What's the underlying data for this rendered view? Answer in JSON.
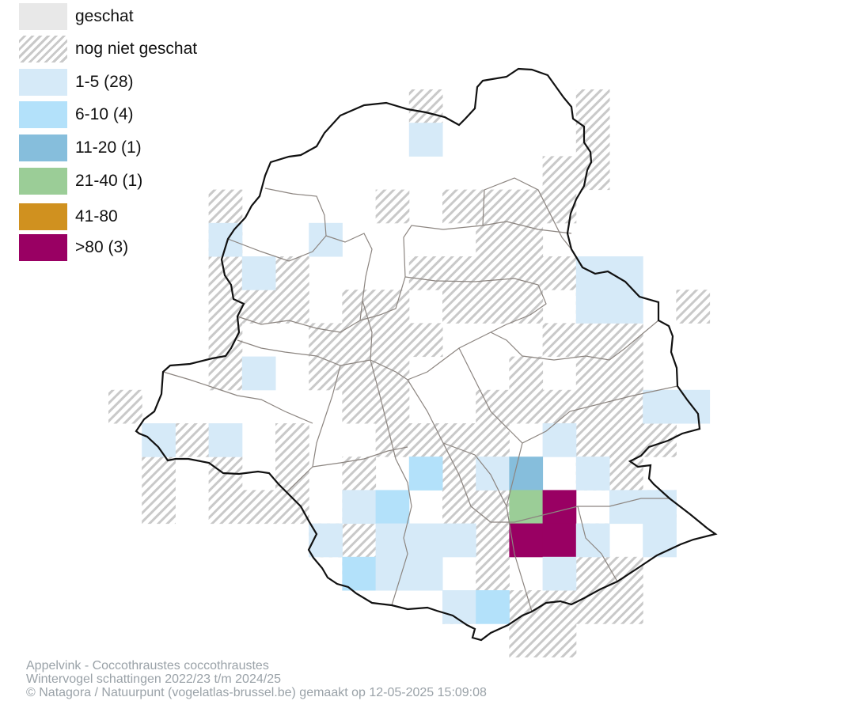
{
  "colors": {
    "geschat": "#e8e8e8",
    "hatch": "#c9c9c9",
    "class_1_5": "#d6eaf8",
    "class_6_10": "#b3e1fa",
    "class_11_20": "#86bedc",
    "class_21_40": "#9bcd97",
    "class_41_80": "#d0911f",
    "class_gt80": "#990063",
    "boundary": "#111111",
    "municipality_lines": "#8c8580"
  },
  "legend": {
    "geschat": "geschat",
    "nog_niet_geschat": "nog niet geschat",
    "class_1_5": "1-5 (28)",
    "class_6_10": "6-10 (4)",
    "class_11_20": "11-20 (1)",
    "class_21_40": "21-40 (1)",
    "class_41_80": "41-80",
    "class_gt80": ">80 (3)"
  },
  "credits": {
    "line1": "Appelvink - Coccothraustes coccothraustes",
    "line2": "Wintervogel schattingen 2022/23 t/m 2024/25",
    "line3": "© Natagora / Natuurpunt (vogelatlas-brussel.be) gemaakt op 12-05-2025 15:09:08"
  }
}
